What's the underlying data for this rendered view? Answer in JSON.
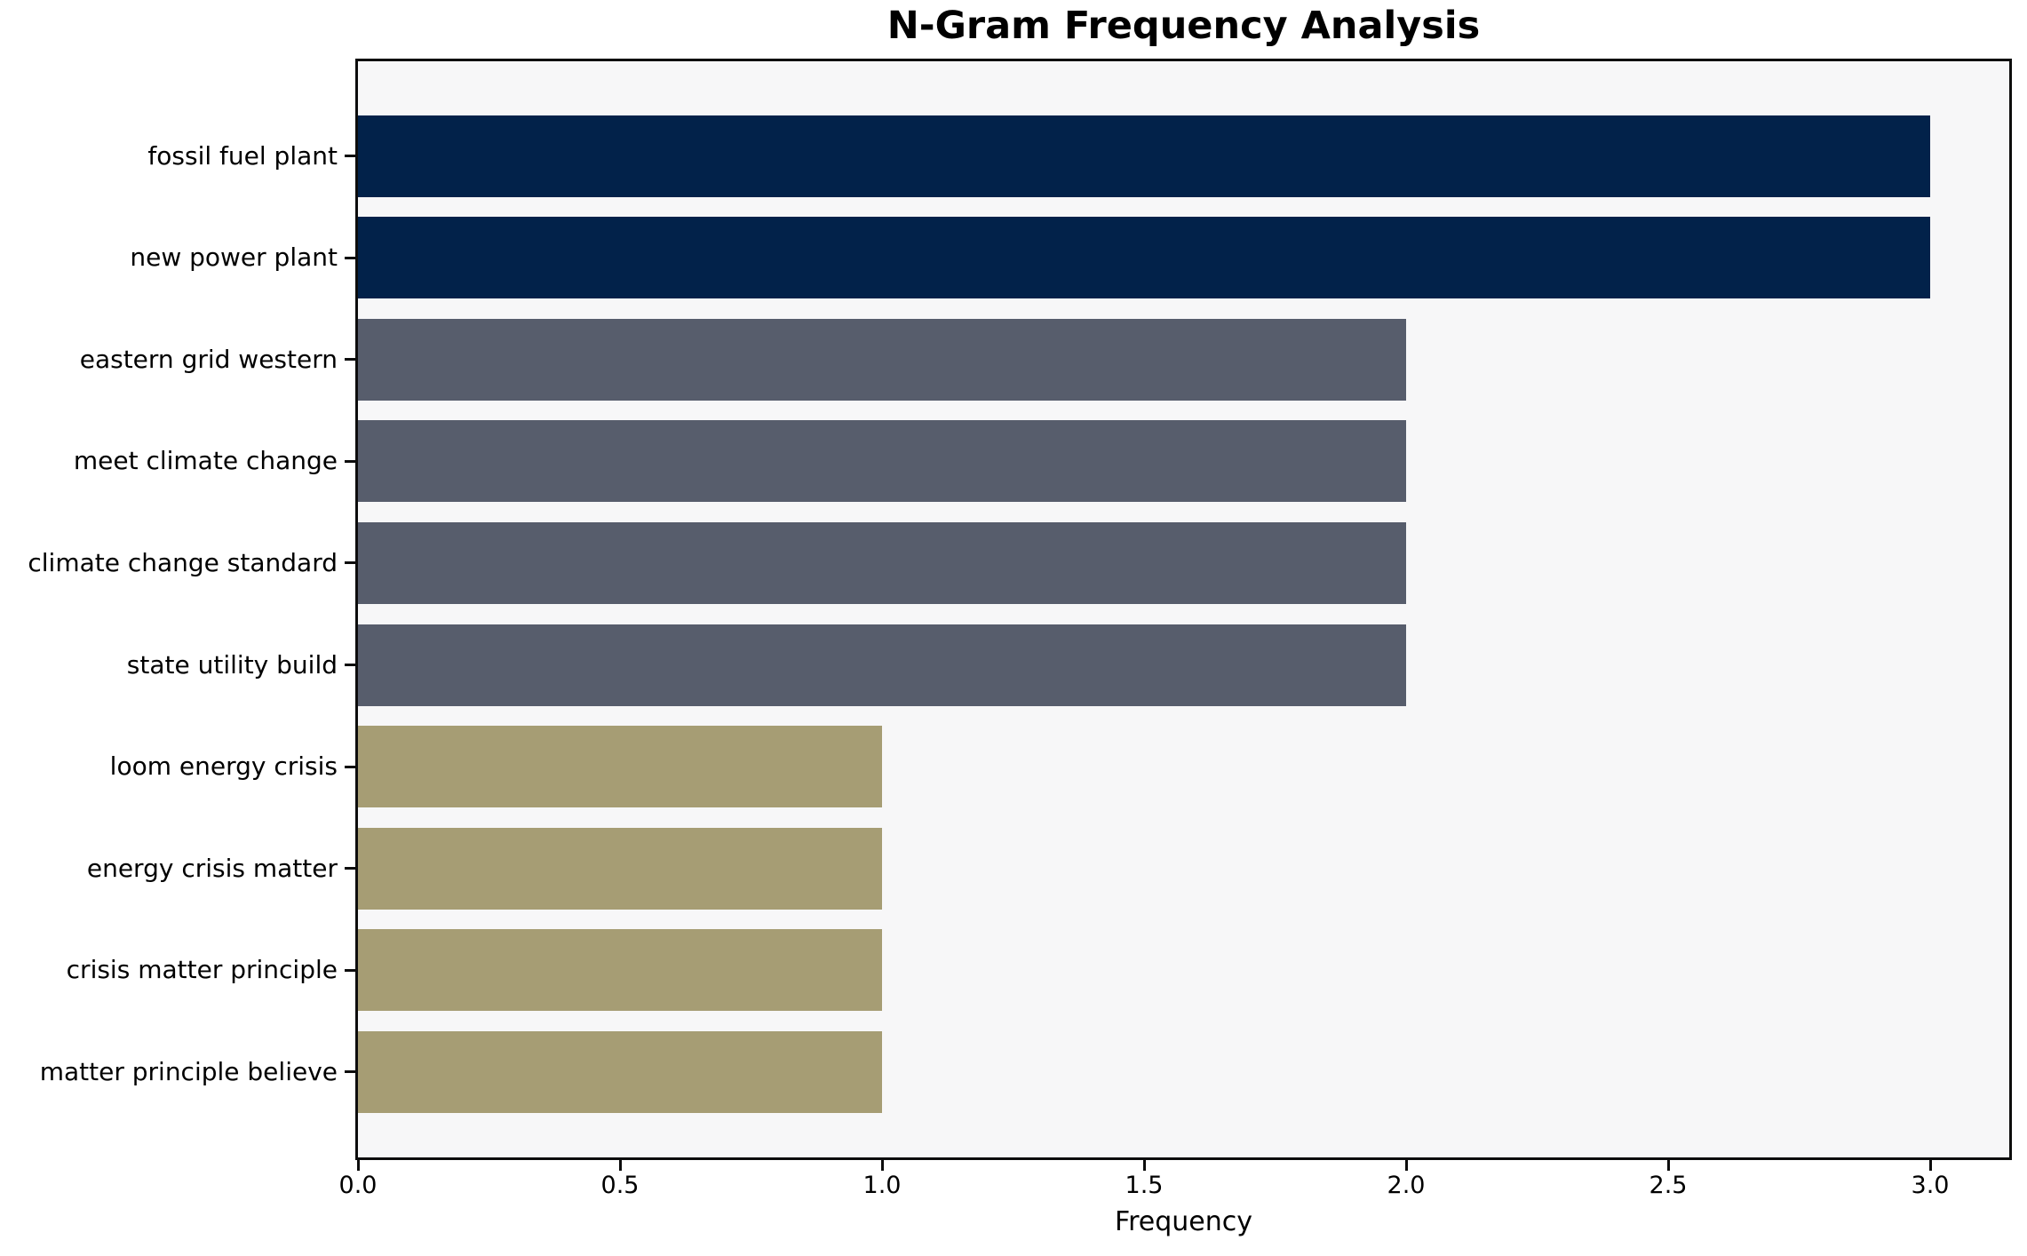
{
  "title": "N-Gram Frequency Analysis",
  "chart_data": {
    "type": "bar",
    "orientation": "horizontal",
    "title": "N-Gram Frequency Analysis",
    "xlabel": "Frequency",
    "ylabel": "",
    "categories": [
      "fossil fuel plant",
      "new power plant",
      "eastern grid western",
      "meet climate change",
      "climate change standard",
      "state utility build",
      "loom energy crisis",
      "energy crisis matter",
      "crisis matter principle",
      "matter principle believe"
    ],
    "values": [
      3,
      3,
      2,
      2,
      2,
      2,
      1,
      1,
      1,
      1
    ],
    "bar_colors": [
      "#02224a",
      "#02224a",
      "#575d6c",
      "#575d6c",
      "#575d6c",
      "#575d6c",
      "#a69d74",
      "#a69d74",
      "#a69d74",
      "#a69d74"
    ],
    "xlim": [
      0,
      3.15
    ],
    "xticks": [
      0,
      0.5,
      1.0,
      1.5,
      2.0,
      2.5,
      3.0
    ],
    "xtick_labels": [
      "0.0",
      "0.5",
      "1.0",
      "1.5",
      "2.0",
      "2.5",
      "3.0"
    ],
    "grid": false,
    "legend": "none",
    "plot_background": "#f7f7f8",
    "figure_background": "#ffffff",
    "axis_color": "#0d0d0d"
  }
}
